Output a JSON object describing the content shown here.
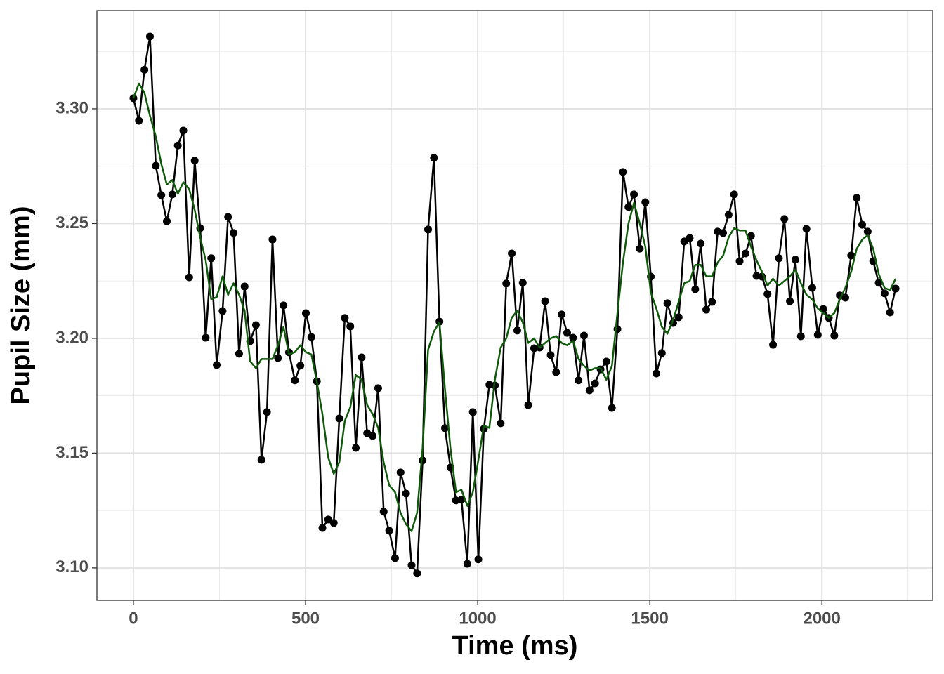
{
  "chart_data": {
    "type": "line",
    "xlabel": "Time (ms)",
    "ylabel": "Pupil Size (mm)",
    "x": [
      0,
      16,
      32,
      48,
      65,
      81,
      97,
      113,
      129,
      145,
      162,
      178,
      194,
      210,
      226,
      242,
      259,
      275,
      291,
      307,
      323,
      339,
      356,
      372,
      388,
      404,
      420,
      436,
      452,
      469,
      485,
      501,
      517,
      533,
      549,
      566,
      582,
      598,
      614,
      630,
      646,
      663,
      679,
      695,
      711,
      727,
      743,
      760,
      776,
      792,
      808,
      824,
      840,
      856,
      873,
      889,
      905,
      921,
      937,
      953,
      970,
      986,
      1002,
      1018,
      1034,
      1050,
      1067,
      1083,
      1099,
      1115,
      1131,
      1147,
      1164,
      1180,
      1196,
      1212,
      1228,
      1244,
      1260,
      1277,
      1293,
      1309,
      1325,
      1341,
      1357,
      1374,
      1390,
      1406,
      1422,
      1438,
      1454,
      1471,
      1487,
      1503,
      1519,
      1535,
      1551,
      1568,
      1584,
      1600,
      1616,
      1632,
      1648,
      1664,
      1681,
      1697,
      1713,
      1729,
      1745,
      1761,
      1778,
      1794,
      1810,
      1826,
      1842,
      1858,
      1875,
      1891,
      1907,
      1923,
      1939,
      1955,
      1972,
      1988,
      2004,
      2020,
      2036,
      2052,
      2068,
      2085,
      2101,
      2117,
      2133,
      2149,
      2165,
      2182,
      2198,
      2214
    ],
    "series": [
      {
        "color": "#000000",
        "markers": true,
        "values": [
          3.3046,
          3.2948,
          3.317,
          3.3315,
          3.2752,
          3.2624,
          3.251,
          3.2627,
          3.284,
          3.2905,
          3.2266,
          3.2774,
          3.248,
          3.2003,
          3.2349,
          3.1884,
          3.2119,
          3.2529,
          3.2459,
          3.1933,
          3.2226,
          3.1988,
          3.2058,
          3.1471,
          3.1679,
          3.2431,
          3.1914,
          3.2144,
          3.1939,
          3.1817,
          3.1881,
          3.211,
          3.2006,
          3.1813,
          3.1174,
          3.1211,
          3.1196,
          3.1651,
          3.2089,
          3.2052,
          3.1523,
          3.1917,
          3.1587,
          3.1575,
          3.1783,
          3.1245,
          3.1162,
          3.1043,
          3.1416,
          3.1324,
          3.1012,
          3.0976,
          3.1468,
          3.2474,
          3.2786,
          3.2073,
          3.1609,
          3.1437,
          3.1294,
          3.1297,
          3.1018,
          3.1679,
          3.1037,
          3.1606,
          3.1798,
          3.1795,
          3.163,
          3.2239,
          3.237,
          3.2034,
          3.2242,
          3.1709,
          3.1957,
          3.196,
          3.2162,
          3.1927,
          3.1853,
          3.2104,
          3.2024,
          3.2003,
          3.1817,
          3.2012,
          3.1774,
          3.1804,
          3.1865,
          3.1899,
          3.1697,
          3.204,
          3.2725,
          3.2572,
          3.2627,
          3.2391,
          3.2593,
          3.2269,
          3.1847,
          3.1936,
          3.2153,
          3.2067,
          3.2092,
          3.2422,
          3.2437,
          3.2214,
          3.2413,
          3.2125,
          3.2159,
          3.2465,
          3.2459,
          3.2538,
          3.2627,
          3.2336,
          3.237,
          3.2446,
          3.2272,
          3.2269,
          3.2193,
          3.1972,
          3.2349,
          3.252,
          3.2162,
          3.2343,
          3.2009,
          3.2477,
          3.222,
          3.2015,
          3.2128,
          3.2089,
          3.2012,
          3.2187,
          3.2177,
          3.2361,
          3.2612,
          3.2495,
          3.2465,
          3.2336,
          3.2242,
          3.2196,
          3.2113,
          3.2217
        ]
      },
      {
        "color": "#0f5a0a",
        "markers": false,
        "values": [
          3.3046,
          3.311,
          3.307,
          3.297,
          3.288,
          3.276,
          3.267,
          3.269,
          3.263,
          3.268,
          3.265,
          3.256,
          3.244,
          3.234,
          3.217,
          3.218,
          3.227,
          3.219,
          3.224,
          3.219,
          3.212,
          3.19,
          3.187,
          3.191,
          3.191,
          3.191,
          3.197,
          3.205,
          3.193,
          3.194,
          3.197,
          3.194,
          3.193,
          3.181,
          3.167,
          3.148,
          3.141,
          3.146,
          3.164,
          3.17,
          3.184,
          3.182,
          3.171,
          3.167,
          3.161,
          3.146,
          3.136,
          3.133,
          3.124,
          3.119,
          3.116,
          3.124,
          3.152,
          3.195,
          3.203,
          3.207,
          3.178,
          3.152,
          3.133,
          3.134,
          3.127,
          3.133,
          3.147,
          3.162,
          3.161,
          3.182,
          3.196,
          3.2,
          3.209,
          3.212,
          3.207,
          3.198,
          3.2,
          3.196,
          3.198,
          3.2,
          3.201,
          3.198,
          3.197,
          3.199,
          3.191,
          3.188,
          3.186,
          3.187,
          3.187,
          3.182,
          3.188,
          3.211,
          3.233,
          3.25,
          3.259,
          3.25,
          3.24,
          3.22,
          3.213,
          3.205,
          3.202,
          3.208,
          3.216,
          3.224,
          3.225,
          3.232,
          3.232,
          3.227,
          3.227,
          3.233,
          3.236,
          3.244,
          3.248,
          3.247,
          3.247,
          3.24,
          3.234,
          3.229,
          3.223,
          3.226,
          3.223,
          3.225,
          3.227,
          3.23,
          3.224,
          3.219,
          3.217,
          3.213,
          3.211,
          3.209,
          3.211,
          3.217,
          3.222,
          3.229,
          3.239,
          3.243,
          3.245,
          3.239,
          3.228,
          3.222,
          3.221,
          3.226
        ]
      }
    ],
    "xlim": [
      -106,
      2322
    ],
    "ylim": [
      3.0859,
      3.3428
    ],
    "xticks": [
      0,
      500,
      1000,
      1500,
      2000
    ],
    "yticks": [
      {
        "value": 3.1,
        "label": "3.10"
      },
      3.15,
      {
        "value": 3.2,
        "label": "3.20"
      },
      {
        "value": 3.25,
        "label": "3.25"
      },
      {
        "value": 3.3,
        "label": "3.30"
      }
    ],
    "x_minor_grid": [
      250,
      750,
      1250,
      1750,
      2250
    ],
    "y_minor_grid": [
      3.125,
      3.175,
      3.225,
      3.275,
      3.325
    ],
    "grid": true
  }
}
